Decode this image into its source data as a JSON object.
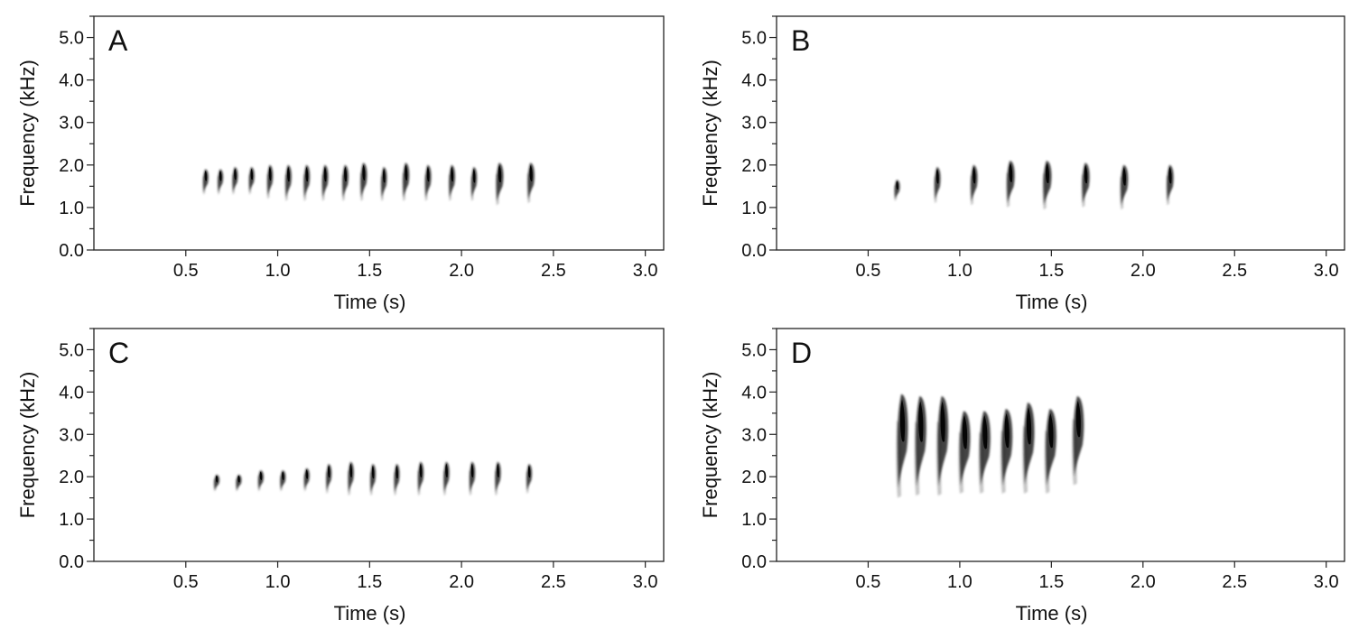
{
  "chart_data": [
    {
      "type": "spectrogram",
      "panel_label": "A",
      "xlabel": "Time (s)",
      "ylabel": "Frequency (kHz)",
      "xlim": [
        0.0,
        3.1
      ],
      "ylim": [
        0.0,
        5.5
      ],
      "x_ticks": [
        0.5,
        1.0,
        1.5,
        2.0,
        2.5,
        3.0
      ],
      "x_tick_labels": [
        "0.5",
        "1.0",
        "1.5",
        "2.0",
        "2.5",
        "3.0"
      ],
      "y_ticks": [
        0.0,
        1.0,
        2.0,
        3.0,
        4.0,
        5.0
      ],
      "y_tick_labels": [
        "0.0",
        "1.0",
        "2.0",
        "3.0",
        "4.0",
        "5.0"
      ],
      "y_minor_step": 0.5,
      "grid": false,
      "notes": [
        {
          "time": 0.61,
          "f_max": 1.9,
          "f_min": 1.3
        },
        {
          "time": 0.69,
          "f_max": 1.9,
          "f_min": 1.3
        },
        {
          "time": 0.77,
          "f_max": 1.95,
          "f_min": 1.3
        },
        {
          "time": 0.86,
          "f_max": 1.95,
          "f_min": 1.3
        },
        {
          "time": 0.96,
          "f_max": 2.0,
          "f_min": 1.2
        },
        {
          "time": 1.06,
          "f_max": 2.0,
          "f_min": 1.15
        },
        {
          "time": 1.16,
          "f_max": 2.0,
          "f_min": 1.15
        },
        {
          "time": 1.26,
          "f_max": 2.0,
          "f_min": 1.15
        },
        {
          "time": 1.37,
          "f_max": 2.0,
          "f_min": 1.15
        },
        {
          "time": 1.47,
          "f_max": 2.05,
          "f_min": 1.15
        },
        {
          "time": 1.58,
          "f_max": 1.95,
          "f_min": 1.15
        },
        {
          "time": 1.7,
          "f_max": 2.05,
          "f_min": 1.15
        },
        {
          "time": 1.82,
          "f_max": 2.0,
          "f_min": 1.15
        },
        {
          "time": 1.95,
          "f_max": 2.0,
          "f_min": 1.15
        },
        {
          "time": 2.07,
          "f_max": 1.95,
          "f_min": 1.15
        },
        {
          "time": 2.21,
          "f_max": 2.05,
          "f_min": 1.05
        },
        {
          "time": 2.38,
          "f_max": 2.05,
          "f_min": 1.1
        }
      ]
    },
    {
      "type": "spectrogram",
      "panel_label": "B",
      "xlabel": "Time (s)",
      "ylabel": "Frequency (kHz)",
      "xlim": [
        0.0,
        3.1
      ],
      "ylim": [
        0.0,
        5.5
      ],
      "x_ticks": [
        0.5,
        1.0,
        1.5,
        2.0,
        2.5,
        3.0
      ],
      "x_tick_labels": [
        "0.5",
        "1.0",
        "1.5",
        "2.0",
        "2.5",
        "3.0"
      ],
      "y_ticks": [
        0.0,
        1.0,
        2.0,
        3.0,
        4.0,
        5.0
      ],
      "y_tick_labels": [
        "0.0",
        "1.0",
        "2.0",
        "3.0",
        "4.0",
        "5.0"
      ],
      "y_minor_step": 0.5,
      "grid": false,
      "notes": [
        {
          "time": 0.66,
          "f_max": 1.65,
          "f_min": 1.15
        },
        {
          "time": 0.88,
          "f_max": 1.95,
          "f_min": 1.1
        },
        {
          "time": 1.08,
          "f_max": 2.0,
          "f_min": 1.05
        },
        {
          "time": 1.28,
          "f_max": 2.1,
          "f_min": 1.0
        },
        {
          "time": 1.48,
          "f_max": 2.1,
          "f_min": 0.95
        },
        {
          "time": 1.69,
          "f_max": 2.05,
          "f_min": 1.0
        },
        {
          "time": 1.9,
          "f_max": 2.0,
          "f_min": 0.95
        },
        {
          "time": 2.15,
          "f_max": 2.0,
          "f_min": 1.05
        }
      ]
    },
    {
      "type": "spectrogram",
      "panel_label": "C",
      "xlabel": "Time (s)",
      "ylabel": "Frequency (kHz)",
      "xlim": [
        0.0,
        3.1
      ],
      "ylim": [
        0.0,
        5.5
      ],
      "x_ticks": [
        0.5,
        1.0,
        1.5,
        2.0,
        2.5,
        3.0
      ],
      "x_tick_labels": [
        "0.5",
        "1.0",
        "1.5",
        "2.0",
        "2.5",
        "3.0"
      ],
      "y_ticks": [
        0.0,
        1.0,
        2.0,
        3.0,
        4.0,
        5.0
      ],
      "y_tick_labels": [
        "0.0",
        "1.0",
        "2.0",
        "3.0",
        "4.0",
        "5.0"
      ],
      "y_minor_step": 0.5,
      "grid": false,
      "notes": [
        {
          "time": 0.67,
          "f_max": 2.05,
          "f_min": 1.65
        },
        {
          "time": 0.79,
          "f_max": 2.05,
          "f_min": 1.65
        },
        {
          "time": 0.91,
          "f_max": 2.15,
          "f_min": 1.65
        },
        {
          "time": 1.03,
          "f_max": 2.15,
          "f_min": 1.65
        },
        {
          "time": 1.16,
          "f_max": 2.2,
          "f_min": 1.65
        },
        {
          "time": 1.28,
          "f_max": 2.3,
          "f_min": 1.6
        },
        {
          "time": 1.4,
          "f_max": 2.35,
          "f_min": 1.55
        },
        {
          "time": 1.52,
          "f_max": 2.3,
          "f_min": 1.55
        },
        {
          "time": 1.65,
          "f_max": 2.3,
          "f_min": 1.55
        },
        {
          "time": 1.78,
          "f_max": 2.35,
          "f_min": 1.55
        },
        {
          "time": 1.92,
          "f_max": 2.35,
          "f_min": 1.55
        },
        {
          "time": 2.06,
          "f_max": 2.35,
          "f_min": 1.55
        },
        {
          "time": 2.2,
          "f_max": 2.35,
          "f_min": 1.55
        },
        {
          "time": 2.37,
          "f_max": 2.3,
          "f_min": 1.6
        }
      ]
    },
    {
      "type": "spectrogram",
      "panel_label": "D",
      "xlabel": "Time (s)",
      "ylabel": "Frequency (kHz)",
      "xlim": [
        0.0,
        3.1
      ],
      "ylim": [
        0.0,
        5.5
      ],
      "x_ticks": [
        0.5,
        1.0,
        1.5,
        2.0,
        2.5,
        3.0
      ],
      "x_tick_labels": [
        "0.5",
        "1.0",
        "1.5",
        "2.0",
        "2.5",
        "3.0"
      ],
      "y_ticks": [
        0.0,
        1.0,
        2.0,
        3.0,
        4.0,
        5.0
      ],
      "y_tick_labels": [
        "0.0",
        "1.0",
        "2.0",
        "3.0",
        "4.0",
        "5.0"
      ],
      "y_minor_step": 0.5,
      "grid": false,
      "notes": [
        {
          "time": 0.69,
          "f_max": 3.95,
          "f_min": 1.5
        },
        {
          "time": 0.79,
          "f_max": 3.9,
          "f_min": 1.55
        },
        {
          "time": 0.91,
          "f_max": 3.9,
          "f_min": 1.55
        },
        {
          "time": 1.03,
          "f_max": 3.55,
          "f_min": 1.6
        },
        {
          "time": 1.14,
          "f_max": 3.55,
          "f_min": 1.6
        },
        {
          "time": 1.26,
          "f_max": 3.6,
          "f_min": 1.6
        },
        {
          "time": 1.38,
          "f_max": 3.75,
          "f_min": 1.6
        },
        {
          "time": 1.5,
          "f_max": 3.6,
          "f_min": 1.6
        },
        {
          "time": 1.65,
          "f_max": 3.9,
          "f_min": 1.8
        }
      ]
    }
  ]
}
